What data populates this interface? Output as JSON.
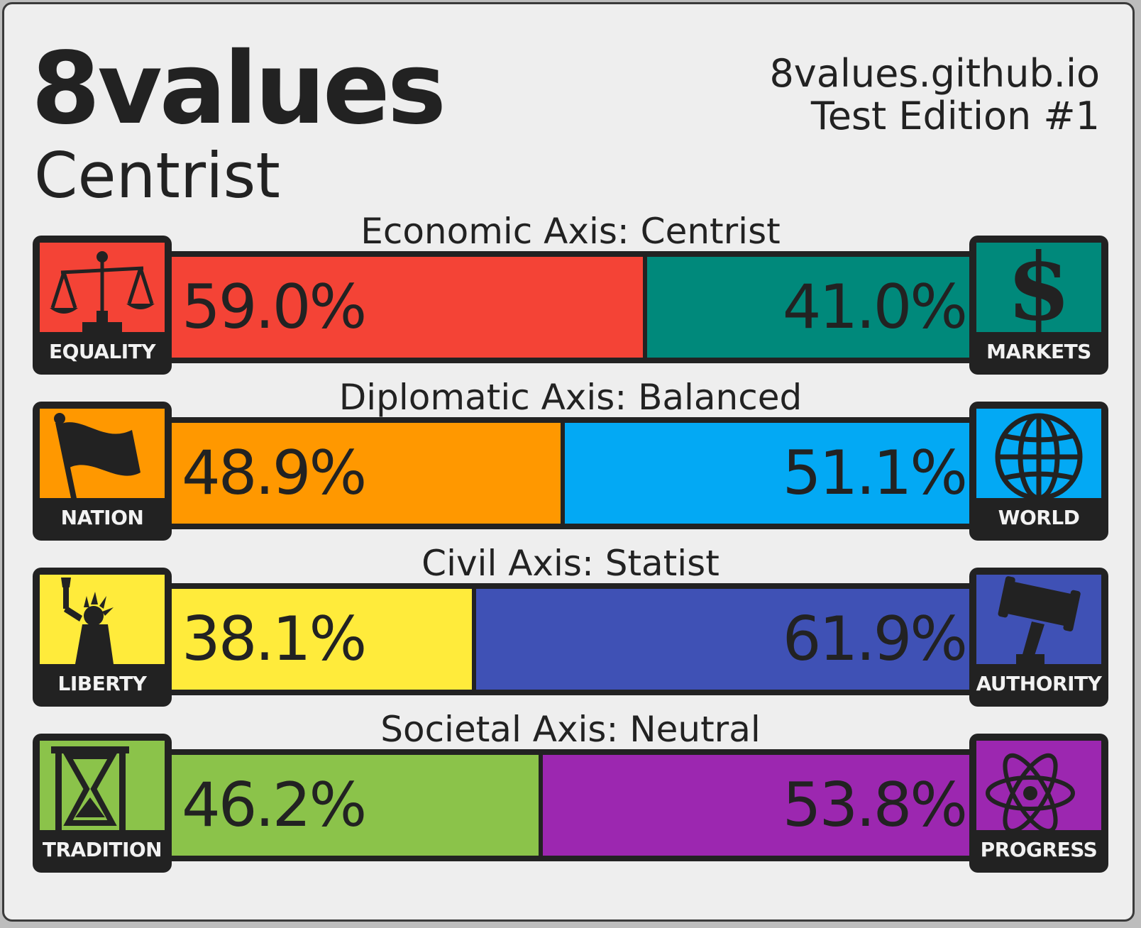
{
  "header": {
    "title": "8values",
    "ideology": "Centrist",
    "site": "8values.github.io",
    "edition": "Test Edition #1"
  },
  "axes": [
    {
      "label": "Economic Axis: Centrist",
      "left": {
        "name": "EQUALITY",
        "percent": "59.0%",
        "value": 59.0,
        "color": "#f44336",
        "icon": "scales-icon"
      },
      "right": {
        "name": "MARKETS",
        "percent": "41.0%",
        "value": 41.0,
        "color": "#00897b",
        "icon": "dollar-icon"
      }
    },
    {
      "label": "Diplomatic Axis: Balanced",
      "left": {
        "name": "NATION",
        "percent": "48.9%",
        "value": 48.9,
        "color": "#ff9800",
        "icon": "flag-icon"
      },
      "right": {
        "name": "WORLD",
        "percent": "51.1%",
        "value": 51.1,
        "color": "#03a9f4",
        "icon": "globe-icon"
      }
    },
    {
      "label": "Civil Axis: Statist",
      "left": {
        "name": "LIBERTY",
        "percent": "38.1%",
        "value": 38.1,
        "color": "#ffeb3b",
        "icon": "statue-of-liberty-icon"
      },
      "right": {
        "name": "AUTHORITY",
        "percent": "61.9%",
        "value": 61.9,
        "color": "#3f51b5",
        "icon": "gavel-icon"
      }
    },
    {
      "label": "Societal Axis: Neutral",
      "left": {
        "name": "TRADITION",
        "percent": "46.2%",
        "value": 46.2,
        "color": "#8bc34a",
        "icon": "hourglass-icon"
      },
      "right": {
        "name": "PROGRESS",
        "percent": "53.8%",
        "value": 53.8,
        "color": "#9c27b0",
        "icon": "atom-icon"
      }
    }
  ]
}
